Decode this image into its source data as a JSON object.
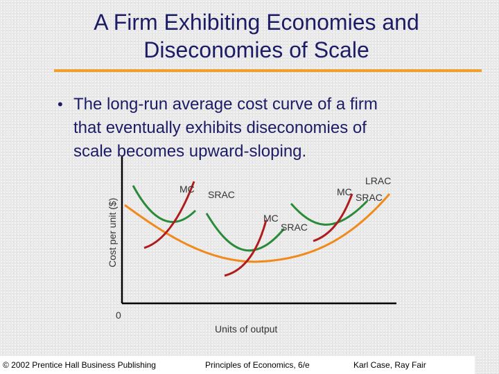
{
  "slide": {
    "title_line1": "A Firm Exhibiting Economies and",
    "title_line2": "Diseconomies of Scale",
    "bullet_symbol": "•",
    "bullet_line1": "The long-run average cost curve of a firm",
    "bullet_line2": "that eventually exhibits diseconomies of",
    "bullet_line3": "scale becomes upward-sloping.",
    "accent_color": "#f0a028",
    "title_color": "#1c1c66"
  },
  "chart_data": {
    "type": "line",
    "title": "",
    "xlabel": "Units of output",
    "ylabel": "Cost per unit ($)",
    "origin_label": "0",
    "colors": {
      "LRAC": "#f08a1c",
      "SRAC": "#2a8a3a",
      "MC": "#b01c1c"
    },
    "series": [
      {
        "name": "LRAC",
        "label": "LRAC",
        "curve": "long-run average cost"
      },
      {
        "name": "SRAC1",
        "label": "SRAC",
        "curve": "short-run average cost, small plant"
      },
      {
        "name": "MC1",
        "label": "MC",
        "curve": "marginal cost, small plant"
      },
      {
        "name": "SRAC2",
        "label": "SRAC",
        "curve": "short-run average cost, medium plant"
      },
      {
        "name": "MC2",
        "label": "MC",
        "curve": "marginal cost, medium plant"
      },
      {
        "name": "SRAC3",
        "label": "SRAC",
        "curve": "short-run average cost, large plant"
      },
      {
        "name": "MC3",
        "label": "MC",
        "curve": "marginal cost, large plant"
      }
    ]
  },
  "footer": {
    "left": "© 2002 Prentice Hall Business Publishing",
    "center": "Principles of Economics, 6/e",
    "right": "Karl Case, Ray Fair"
  }
}
